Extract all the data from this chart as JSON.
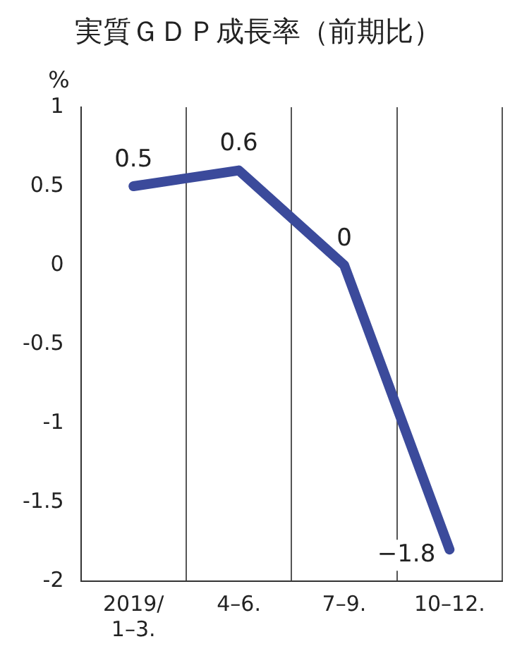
{
  "chart_data": {
    "type": "line",
    "title": "実質ＧＤＰ成長率（前期比）",
    "ylabel": "%",
    "categories": [
      "2019/\n1–3.",
      "4–6.",
      "7–9.",
      "10–12."
    ],
    "series": [
      {
        "color": "#3b4a9b",
        "values": [
          0.5,
          0.6,
          0,
          -1.8
        ],
        "value_labels": [
          "0.5",
          "0.6",
          "0",
          "−1.8"
        ]
      }
    ],
    "ylim": [
      -2,
      1
    ],
    "yticks": [
      -2,
      -1.5,
      -1,
      -0.5,
      0,
      0.5,
      1
    ],
    "grid": "x",
    "legend": false,
    "marker": "none",
    "line_style": "solid"
  }
}
